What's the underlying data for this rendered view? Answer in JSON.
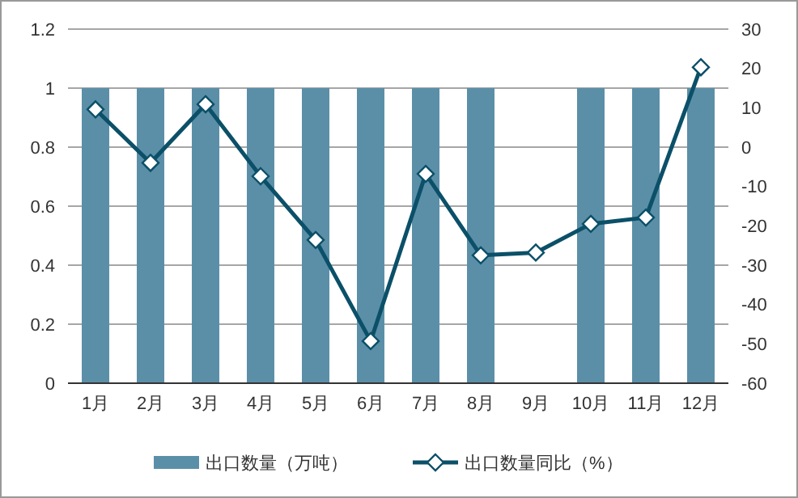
{
  "chart_data": {
    "type": "bar",
    "categories": [
      "1月",
      "2月",
      "3月",
      "4月",
      "5月",
      "6月",
      "7月",
      "8月",
      "9月",
      "10月",
      "11月",
      "12月"
    ],
    "series": [
      {
        "name": "出口数量（万吨）",
        "color": "#5b8fa8",
        "values": [
          1,
          1,
          1,
          1,
          1,
          1,
          1,
          1,
          null,
          1,
          1,
          1
        ]
      },
      {
        "name": "出口数量同比（%）",
        "type": "line",
        "axis": "y2",
        "color": "#0b5068",
        "marker": "diamond",
        "values": [
          9.6,
          -4,
          10.9,
          -7.4,
          -23.6,
          -49.3,
          -6.8,
          -27.5,
          -26.8,
          -19.5,
          -17.9,
          20.3
        ]
      }
    ],
    "ylim": [
      0,
      1.2
    ],
    "yticks": [
      0,
      0.2,
      0.4,
      0.6,
      0.8,
      1,
      1.2
    ],
    "y2lim": [
      -60,
      30
    ],
    "y2ticks": [
      -60,
      -50,
      -40,
      -30,
      -20,
      -10,
      0,
      10,
      20,
      30
    ],
    "grid": "y",
    "legend": "bottom"
  }
}
